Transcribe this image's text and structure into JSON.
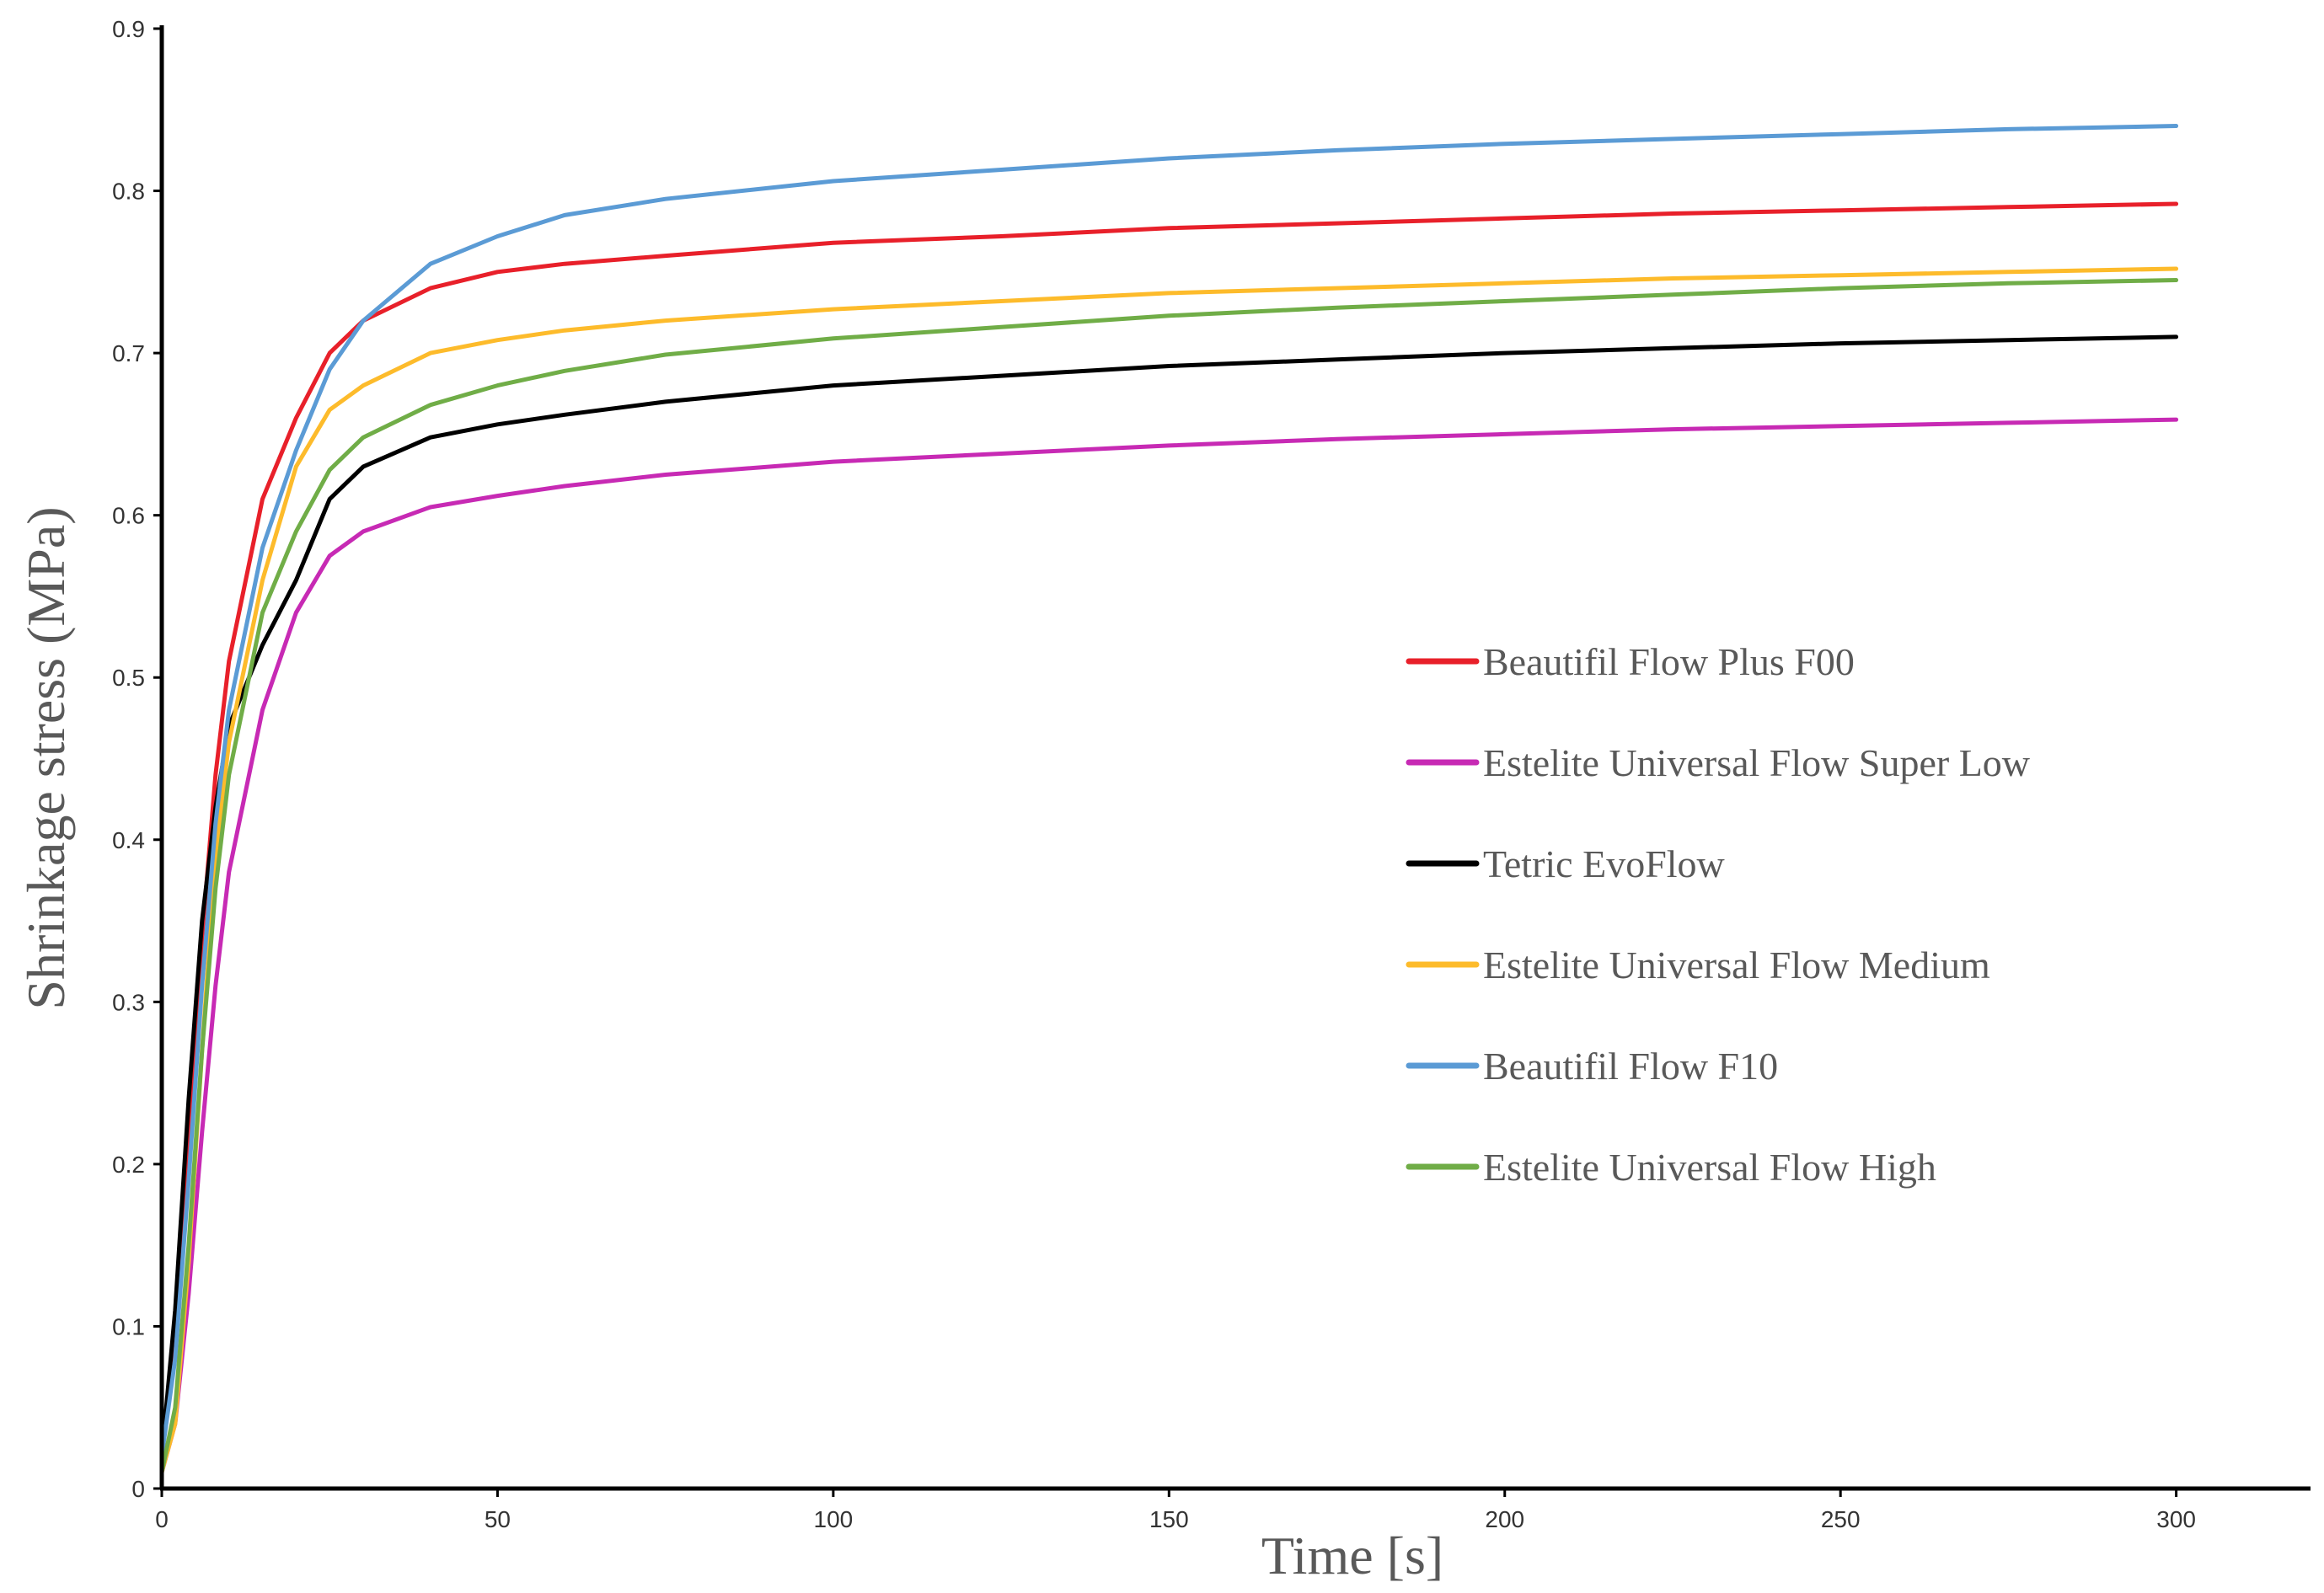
{
  "chart_data": {
    "type": "line",
    "title": "",
    "xlabel": "Time [s]",
    "ylabel": "Shrinkage stress (MPa)",
    "xlim": [
      0,
      320
    ],
    "ylim": [
      0,
      0.9
    ],
    "x_ticks": [
      "0",
      "50",
      "100",
      "150",
      "200",
      "250",
      "300"
    ],
    "x_tick_values": [
      0,
      50,
      100,
      150,
      200,
      250,
      300
    ],
    "y_ticks": [
      "0",
      "0.1",
      "0.2",
      "0.3",
      "0.4",
      "0.5",
      "0.6",
      "0.7",
      "0.8",
      "0.9"
    ],
    "y_tick_values": [
      0,
      0.1,
      0.2,
      0.3,
      0.4,
      0.5,
      0.6,
      0.7,
      0.8,
      0.9
    ],
    "grid": false,
    "legend_position": "center-right",
    "x": [
      0,
      2,
      4,
      6,
      8,
      10,
      15,
      20,
      25,
      30,
      40,
      50,
      60,
      75,
      100,
      125,
      150,
      175,
      200,
      225,
      250,
      275,
      300
    ],
    "series": [
      {
        "name": "Beautifil Flow Plus F00",
        "color": "#e8202a",
        "values": [
          0.02,
          0.09,
          0.22,
          0.34,
          0.44,
          0.51,
          0.61,
          0.66,
          0.7,
          0.72,
          0.74,
          0.75,
          0.755,
          0.76,
          0.768,
          0.772,
          0.777,
          0.78,
          0.783,
          0.786,
          0.788,
          0.79,
          0.792
        ]
      },
      {
        "name": "Estelite Universal Flow Super Low",
        "color": "#c72ab4",
        "values": [
          0.01,
          0.04,
          0.12,
          0.22,
          0.31,
          0.38,
          0.48,
          0.54,
          0.575,
          0.59,
          0.605,
          0.612,
          0.618,
          0.625,
          0.633,
          0.638,
          0.643,
          0.647,
          0.65,
          0.653,
          0.655,
          0.657,
          0.659
        ]
      },
      {
        "name": "Tetric EvoFlow",
        "color": "#000000",
        "values": [
          0.02,
          0.11,
          0.24,
          0.35,
          0.42,
          0.47,
          0.52,
          0.56,
          0.61,
          0.63,
          0.648,
          0.656,
          0.662,
          0.67,
          0.68,
          0.686,
          0.692,
          0.696,
          0.7,
          0.703,
          0.706,
          0.708,
          0.71
        ]
      },
      {
        "name": "Estelite Universal Flow Medium",
        "color": "#fdbb2b",
        "values": [
          0.01,
          0.04,
          0.14,
          0.27,
          0.39,
          0.46,
          0.56,
          0.63,
          0.665,
          0.68,
          0.7,
          0.708,
          0.714,
          0.72,
          0.727,
          0.732,
          0.737,
          0.74,
          0.743,
          0.746,
          0.748,
          0.75,
          0.752
        ]
      },
      {
        "name": "Beautifil Flow F10",
        "color": "#5b9bd5",
        "values": [
          0.02,
          0.08,
          0.19,
          0.31,
          0.41,
          0.48,
          0.58,
          0.64,
          0.69,
          0.72,
          0.755,
          0.772,
          0.785,
          0.795,
          0.806,
          0.813,
          0.82,
          0.825,
          0.829,
          0.832,
          0.835,
          0.838,
          0.84
        ]
      },
      {
        "name": "Estelite Universal Flow High",
        "color": "#70ad47",
        "values": [
          0.01,
          0.05,
          0.15,
          0.27,
          0.37,
          0.44,
          0.54,
          0.59,
          0.628,
          0.648,
          0.668,
          0.68,
          0.689,
          0.699,
          0.709,
          0.716,
          0.723,
          0.728,
          0.732,
          0.736,
          0.74,
          0.743,
          0.745
        ]
      }
    ]
  }
}
